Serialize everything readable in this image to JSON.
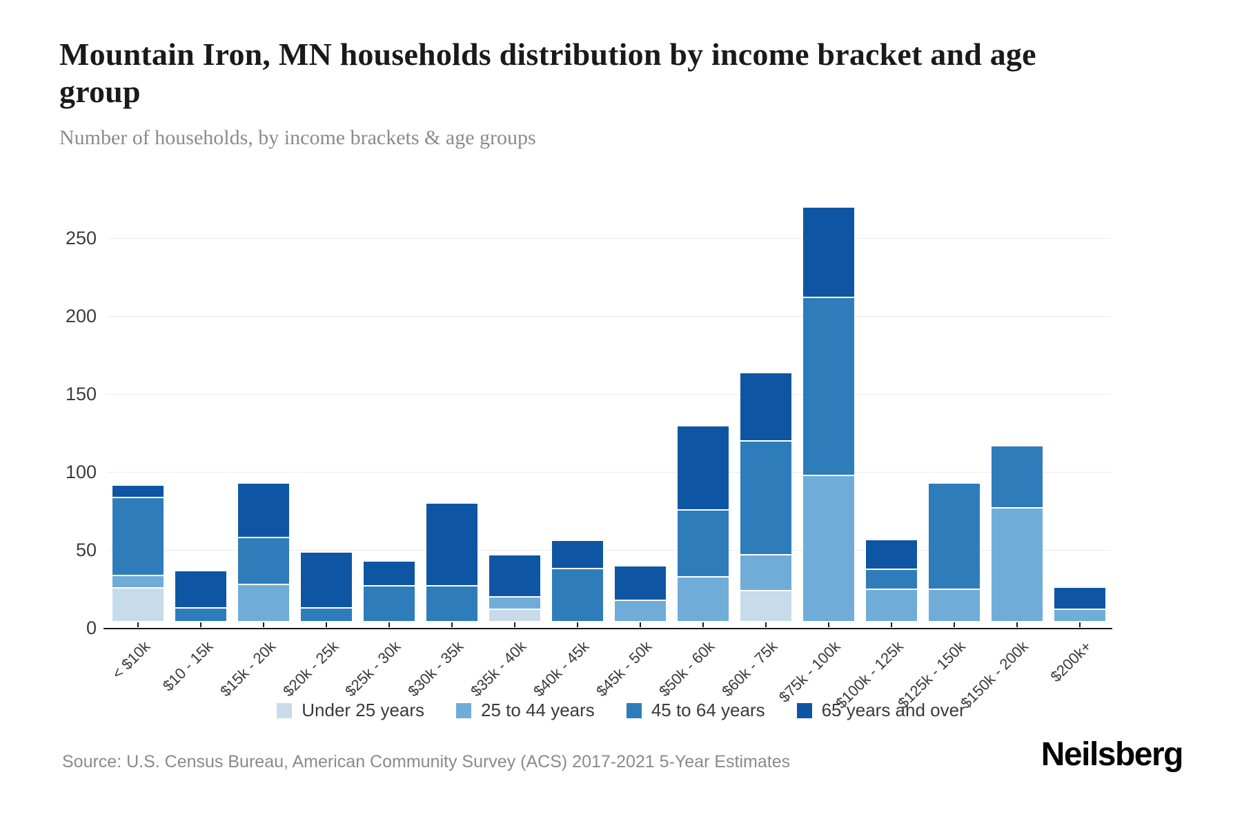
{
  "header": {
    "title": "Mountain Iron, MN households distribution by income bracket and age group",
    "subtitle": "Number of households, by income brackets & age groups"
  },
  "chart_data": {
    "type": "bar",
    "stacked": true,
    "title": "Mountain Iron, MN households distribution by income bracket and age group",
    "xlabel": "",
    "ylabel": "Number of households",
    "categories": [
      "< $10k",
      "$10 - 15k",
      "$15k - 20k",
      "$20k - 25k",
      "$25k - 30k",
      "$30k - 35k",
      "$35k - 40k",
      "$40k - 45k",
      "$45k - 50k",
      "$50k - 60k",
      "$60k - 75k",
      "$75k - 100k",
      "$100k - 125k",
      "$125k - 150k",
      "$150k - 200k",
      "$200k+"
    ],
    "series": [
      {
        "name": "Under 25 years",
        "color": "#c7dbeb",
        "values": [
          21,
          0,
          0,
          0,
          0,
          0,
          7,
          0,
          0,
          0,
          19,
          0,
          0,
          0,
          0,
          0
        ]
      },
      {
        "name": "25 to 44 years",
        "color": "#6fadd8",
        "values": [
          8,
          0,
          23,
          0,
          0,
          0,
          8,
          0,
          13,
          28,
          23,
          93,
          20,
          20,
          72,
          7
        ]
      },
      {
        "name": "45 to 64 years",
        "color": "#2f7cba",
        "values": [
          50,
          8,
          30,
          8,
          22,
          22,
          0,
          33,
          0,
          43,
          73,
          114,
          13,
          68,
          40,
          0
        ]
      },
      {
        "name": "65 years and over",
        "color": "#0e56a3",
        "values": [
          8,
          24,
          35,
          36,
          16,
          53,
          27,
          18,
          22,
          54,
          44,
          58,
          19,
          0,
          0,
          14
        ]
      }
    ],
    "totals": [
      87,
      32,
      88,
      44,
      38,
      75,
      42,
      51,
      35,
      125,
      159,
      265,
      52,
      88,
      112,
      21
    ],
    "y_ticks": [
      0,
      50,
      100,
      150,
      200,
      250
    ],
    "ylim": [
      0,
      278
    ],
    "grid": "horizontal",
    "legend_position": "bottom"
  },
  "footer": {
    "source": "Source: U.S. Census Bureau, American Community Survey (ACS) 2017-2021 5-Year Estimates",
    "logo": "Neilsberg"
  }
}
